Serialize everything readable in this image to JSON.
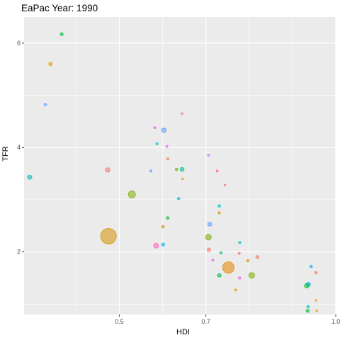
{
  "chart_data": {
    "type": "scatter",
    "title": "EaPac Year: 1990",
    "xlabel": "HDI",
    "ylabel": "TFR",
    "xlim": [
      0.28,
      1.0
    ],
    "ylim": [
      0.8,
      6.5
    ],
    "x_ticks": [
      {
        "value": 0.5,
        "label": "0.5"
      },
      {
        "value": 0.7,
        "label": "0.7"
      },
      {
        "value": 1.0,
        "label": "1.0"
      }
    ],
    "x_minor_ticks": [
      0.4,
      0.6,
      0.8,
      0.9
    ],
    "y_ticks": [
      {
        "value": 2,
        "label": "2"
      },
      {
        "value": 4,
        "label": "4"
      },
      {
        "value": 6,
        "label": "6"
      }
    ],
    "y_minor_ticks": [
      1,
      3,
      5
    ],
    "grid": true,
    "legend": "none",
    "panel_background": "#EBEBEB",
    "grid_color": "#FFFFFF",
    "points": [
      {
        "x": 0.293,
        "y": 3.43,
        "size": 3,
        "color": "#00BFC4"
      },
      {
        "x": 0.367,
        "y": 6.17,
        "size": 2,
        "color": "#00BA38"
      },
      {
        "x": 0.341,
        "y": 5.6,
        "size": 2.5,
        "color": "#E69F00"
      },
      {
        "x": 0.329,
        "y": 4.82,
        "size": 1.8,
        "color": "#619CFF"
      },
      {
        "x": 0.475,
        "y": 2.3,
        "size": 11,
        "color": "#D39200"
      },
      {
        "x": 0.473,
        "y": 3.57,
        "size": 3.2,
        "color": "#F8766D"
      },
      {
        "x": 0.529,
        "y": 3.1,
        "size": 5,
        "color": "#7CAE00"
      },
      {
        "x": 0.585,
        "y": 2.12,
        "size": 3.5,
        "color": "#FF64B0"
      },
      {
        "x": 0.601,
        "y": 2.14,
        "size": 2.2,
        "color": "#00B0F6"
      },
      {
        "x": 0.603,
        "y": 4.33,
        "size": 3.2,
        "color": "#619CFF"
      },
      {
        "x": 0.582,
        "y": 4.38,
        "size": 1.5,
        "color": "#E76BF3"
      },
      {
        "x": 0.61,
        "y": 4.02,
        "size": 1.5,
        "color": "#F564E3"
      },
      {
        "x": 0.587,
        "y": 4.07,
        "size": 1.5,
        "color": "#00BFC4"
      },
      {
        "x": 0.645,
        "y": 4.65,
        "size": 1.2,
        "color": "#F8766D"
      },
      {
        "x": 0.645,
        "y": 3.58,
        "size": 2.8,
        "color": "#00C08B"
      },
      {
        "x": 0.632,
        "y": 3.58,
        "size": 1.8,
        "color": "#7CAE00"
      },
      {
        "x": 0.646,
        "y": 3.4,
        "size": 1.2,
        "color": "#E69F00"
      },
      {
        "x": 0.573,
        "y": 3.55,
        "size": 1.5,
        "color": "#619CFF"
      },
      {
        "x": 0.612,
        "y": 3.78,
        "size": 1.5,
        "color": "#F8766D"
      },
      {
        "x": 0.637,
        "y": 3.02,
        "size": 1.8,
        "color": "#00BFC4"
      },
      {
        "x": 0.612,
        "y": 2.65,
        "size": 1.8,
        "color": "#00BA38"
      },
      {
        "x": 0.601,
        "y": 2.48,
        "size": 1.8,
        "color": "#D39200"
      },
      {
        "x": 0.706,
        "y": 3.85,
        "size": 1.5,
        "color": "#C77CFF"
      },
      {
        "x": 0.726,
        "y": 3.55,
        "size": 1.5,
        "color": "#FF61C3"
      },
      {
        "x": 0.744,
        "y": 3.28,
        "size": 1.2,
        "color": "#F8766D"
      },
      {
        "x": 0.731,
        "y": 2.88,
        "size": 1.8,
        "color": "#00BFC4"
      },
      {
        "x": 0.731,
        "y": 2.75,
        "size": 1.5,
        "color": "#D39200"
      },
      {
        "x": 0.709,
        "y": 2.53,
        "size": 2.8,
        "color": "#619CFF"
      },
      {
        "x": 0.706,
        "y": 2.28,
        "size": 4,
        "color": "#7CAE00"
      },
      {
        "x": 0.707,
        "y": 2.04,
        "size": 2.5,
        "color": "#F8766D"
      },
      {
        "x": 0.716,
        "y": 1.84,
        "size": 1.5,
        "color": "#E76BF3"
      },
      {
        "x": 0.735,
        "y": 1.98,
        "size": 1.5,
        "color": "#00C08B"
      },
      {
        "x": 0.752,
        "y": 1.7,
        "size": 8,
        "color": "#E58700"
      },
      {
        "x": 0.731,
        "y": 1.55,
        "size": 2.5,
        "color": "#00BA38"
      },
      {
        "x": 0.778,
        "y": 2.18,
        "size": 1.5,
        "color": "#00BFC4"
      },
      {
        "x": 0.777,
        "y": 1.97,
        "size": 1.5,
        "color": "#F8766D"
      },
      {
        "x": 0.769,
        "y": 1.27,
        "size": 1.5,
        "color": "#E69F00"
      },
      {
        "x": 0.778,
        "y": 1.5,
        "size": 1.8,
        "color": "#E76BF3"
      },
      {
        "x": 0.797,
        "y": 1.83,
        "size": 1.5,
        "color": "#E58700"
      },
      {
        "x": 0.819,
        "y": 1.9,
        "size": 2.2,
        "color": "#F8766D"
      },
      {
        "x": 0.806,
        "y": 1.55,
        "size": 4,
        "color": "#7CAE00"
      },
      {
        "x": 0.943,
        "y": 1.72,
        "size": 1.8,
        "color": "#00B0F6"
      },
      {
        "x": 0.954,
        "y": 1.6,
        "size": 1.8,
        "color": "#F8766D"
      },
      {
        "x": 0.937,
        "y": 1.38,
        "size": 2.8,
        "color": "#00A9FF"
      },
      {
        "x": 0.933,
        "y": 1.35,
        "size": 3.2,
        "color": "#00BA38"
      },
      {
        "x": 0.954,
        "y": 1.07,
        "size": 1.2,
        "color": "#E69F00"
      },
      {
        "x": 0.936,
        "y": 0.95,
        "size": 1.8,
        "color": "#00BFC4"
      },
      {
        "x": 0.935,
        "y": 0.87,
        "size": 2.2,
        "color": "#00BA38"
      },
      {
        "x": 0.956,
        "y": 0.87,
        "size": 1.2,
        "color": "#E69F00"
      }
    ]
  }
}
